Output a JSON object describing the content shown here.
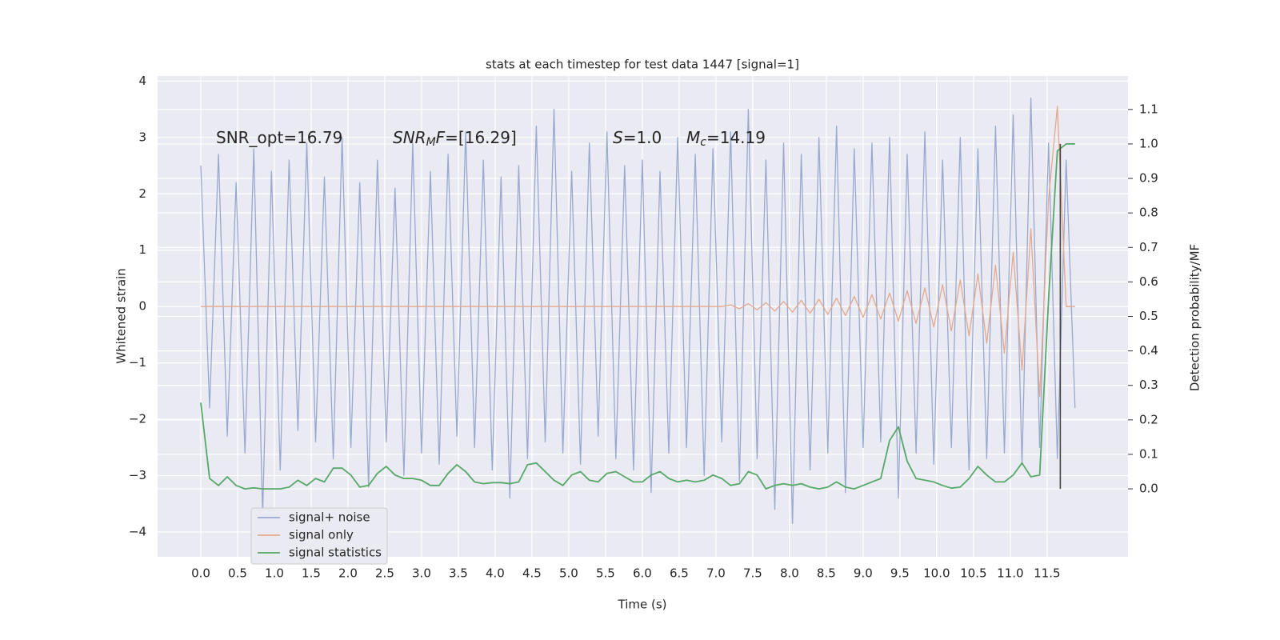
{
  "chart_data": {
    "type": "line",
    "title": "stats at each timestep for test data 1447 [signal=1]",
    "xlabel": "Time (s)",
    "ylabel": "Whitened strain",
    "y2label": "Detection probability/MF",
    "xlim": [
      -0.587,
      12.6
    ],
    "ylim": [
      -4.44,
      4.09
    ],
    "y2lim": [
      -0.197,
      1.197
    ],
    "xticks": [
      {
        "value": 0,
        "label": "0.0"
      },
      0.5,
      {
        "value": 1,
        "label": "1.0"
      },
      1.5,
      {
        "value": 2,
        "label": "2.0"
      },
      2.5,
      {
        "value": 3,
        "label": "3.0"
      },
      3.5,
      {
        "value": 4,
        "label": "4.0"
      },
      4.5,
      {
        "value": 5,
        "label": "5.0"
      },
      5.5,
      {
        "value": 6,
        "label": "6.0"
      },
      6.5,
      {
        "value": 7,
        "label": "7.0"
      },
      7.5,
      {
        "value": 8,
        "label": "8.0"
      },
      8.5,
      {
        "value": 9,
        "label": "9.0"
      },
      9.5,
      {
        "value": 10,
        "label": "10.0"
      },
      10.5,
      {
        "value": 11,
        "label": "11.0"
      },
      11.5
    ],
    "yticks": [
      {
        "value": -4,
        "label": "−4"
      },
      {
        "value": -3,
        "label": "−3"
      },
      {
        "value": -2,
        "label": "−2"
      },
      {
        "value": -1,
        "label": "−1"
      },
      0,
      1,
      2,
      3,
      4
    ],
    "y2ticks": [
      {
        "value": 0,
        "label": "0.0"
      },
      0.1,
      0.2,
      0.3,
      0.4,
      0.5,
      0.6,
      0.7,
      0.8,
      0.9,
      {
        "value": 1,
        "label": "1.0"
      },
      1.1
    ],
    "grid": true,
    "legend": "lower left",
    "x": [
      0,
      0.12,
      0.24,
      0.36,
      0.48,
      0.6,
      0.72,
      0.84,
      0.96,
      1.08,
      1.2,
      1.32,
      1.44,
      1.56,
      1.68,
      1.8,
      1.92,
      2.04,
      2.16,
      2.28,
      2.4,
      2.52,
      2.64,
      2.76,
      2.88,
      3,
      3.12,
      3.24,
      3.36,
      3.48,
      3.6,
      3.72,
      3.84,
      3.96,
      4.08,
      4.2,
      4.32,
      4.44,
      4.56,
      4.68,
      4.8,
      4.92,
      5.04,
      5.16,
      5.28,
      5.4,
      5.52,
      5.64,
      5.76,
      5.88,
      6,
      6.12,
      6.24,
      6.36,
      6.48,
      6.6,
      6.72,
      6.84,
      6.96,
      7.08,
      7.2,
      7.32,
      7.44,
      7.56,
      7.68,
      7.8,
      7.92,
      8.04,
      8.16,
      8.28,
      8.4,
      8.52,
      8.64,
      8.76,
      8.88,
      9,
      9.12,
      9.24,
      9.36,
      9.48,
      9.6,
      9.72,
      9.84,
      9.96,
      10.08,
      10.2,
      10.32,
      10.44,
      10.56,
      10.68,
      10.8,
      10.92,
      11.04,
      11.16,
      11.28,
      11.4,
      11.52,
      11.64,
      11.76,
      11.88
    ],
    "series": [
      {
        "name": "signal+ noise",
        "color": "#97a9d0",
        "values": [
          2.5,
          -1.8,
          2.7,
          -2.3,
          2.2,
          -2.6,
          2.8,
          -3.7,
          2.4,
          -2.9,
          2.6,
          -2.2,
          2.9,
          -2.4,
          2.3,
          -2.7,
          3.0,
          -2.5,
          2.2,
          -3.2,
          2.6,
          -2.4,
          2.1,
          -3.0,
          2.9,
          -2.6,
          2.4,
          -2.8,
          2.7,
          -2.3,
          3.1,
          -2.5,
          2.6,
          -2.9,
          2.3,
          -3.4,
          2.5,
          -2.7,
          3.2,
          -2.4,
          3.5,
          -2.6,
          2.4,
          -2.8,
          2.9,
          -2.3,
          3.1,
          -2.7,
          2.5,
          -2.9,
          2.6,
          -3.3,
          2.4,
          -2.6,
          3.0,
          -2.5,
          2.7,
          -3.0,
          2.8,
          -2.4,
          3.1,
          -3.1,
          3.5,
          -2.7,
          2.6,
          -3.6,
          2.9,
          -3.85,
          2.7,
          -2.9,
          3.0,
          -2.6,
          3.2,
          -3.3,
          2.8,
          -2.5,
          2.9,
          -2.4,
          3.0,
          -3.4,
          2.7,
          -2.6,
          3.1,
          -2.8,
          2.6,
          -2.5,
          3.0,
          -2.9,
          2.8,
          -2.7,
          3.2,
          -2.6,
          3.4,
          -2.8,
          3.7,
          -2.5,
          2.9,
          -2.7,
          2.6,
          -1.8
        ]
      },
      {
        "name": "signal only",
        "color": "#e6a88c",
        "values": [
          0,
          0,
          0,
          0,
          0,
          0,
          0,
          0,
          0,
          0,
          0,
          0,
          0,
          0,
          0,
          0,
          0,
          0,
          0,
          0,
          0,
          0,
          0,
          0,
          0,
          0,
          0,
          0,
          0,
          0,
          0,
          0,
          0,
          0,
          0,
          0,
          0,
          0,
          0,
          0,
          0,
          0,
          0,
          0,
          0,
          0,
          0,
          0,
          0,
          0,
          0,
          0,
          0,
          0,
          0,
          0,
          0,
          0,
          0,
          0,
          0.03,
          -0.04,
          0.05,
          -0.06,
          0.07,
          -0.08,
          0.09,
          -0.1,
          0.11,
          -0.12,
          0.13,
          -0.14,
          0.15,
          -0.16,
          0.18,
          -0.19,
          0.21,
          -0.22,
          0.24,
          -0.26,
          0.28,
          -0.3,
          0.33,
          -0.36,
          0.39,
          -0.43,
          0.47,
          -0.52,
          0.58,
          -0.65,
          0.73,
          -0.83,
          0.96,
          -1.13,
          1.38,
          -1.6,
          1.9,
          3.55,
          0,
          0
        ]
      },
      {
        "name": "signal statistics",
        "color": "#55a868",
        "axis": "y2",
        "values": [
          0.25,
          0.03,
          0.01,
          0.035,
          0.01,
          0.0,
          0.003,
          0.0,
          0.0,
          0.0,
          0.005,
          0.025,
          0.01,
          0.03,
          0.02,
          0.06,
          0.06,
          0.04,
          0.005,
          0.01,
          0.045,
          0.065,
          0.04,
          0.03,
          0.03,
          0.025,
          0.01,
          0.01,
          0.045,
          0.07,
          0.05,
          0.02,
          0.015,
          0.018,
          0.018,
          0.015,
          0.02,
          0.07,
          0.075,
          0.05,
          0.025,
          0.01,
          0.04,
          0.05,
          0.025,
          0.02,
          0.045,
          0.05,
          0.035,
          0.02,
          0.02,
          0.04,
          0.05,
          0.03,
          0.02,
          0.025,
          0.02,
          0.025,
          0.04,
          0.03,
          0.01,
          0.015,
          0.05,
          0.04,
          0.0,
          0.01,
          0.015,
          0.01,
          0.015,
          0.005,
          0.0,
          0.005,
          0.02,
          0.005,
          0.0,
          0.01,
          0.02,
          0.03,
          0.14,
          0.18,
          0.08,
          0.03,
          0.025,
          0.02,
          0.01,
          0.002,
          0.005,
          0.03,
          0.065,
          0.04,
          0.02,
          0.02,
          0.04,
          0.075,
          0.035,
          0.04,
          0.55,
          0.98,
          1.0,
          1.0
        ]
      }
    ],
    "vline": {
      "x": 11.68,
      "y2": [
        0,
        1
      ],
      "color": "#444444"
    },
    "annotations": [
      {
        "parts": [
          {
            "text": "SNR_opt=16.79"
          }
        ]
      },
      {
        "parts": [
          {
            "text": "SNR",
            "style": "italic"
          },
          {
            "text": "M",
            "style": "sub"
          },
          {
            "text": "F",
            "style": "italic"
          },
          {
            "text": "=[16.29]"
          }
        ]
      },
      {
        "parts": [
          {
            "text": "S",
            "style": "italic"
          },
          {
            "text": "=1.0"
          }
        ]
      },
      {
        "parts": [
          {
            "text": "M",
            "style": "italic"
          },
          {
            "text": "c",
            "style": "sub"
          },
          {
            "text": "=14.19"
          }
        ]
      }
    ]
  }
}
